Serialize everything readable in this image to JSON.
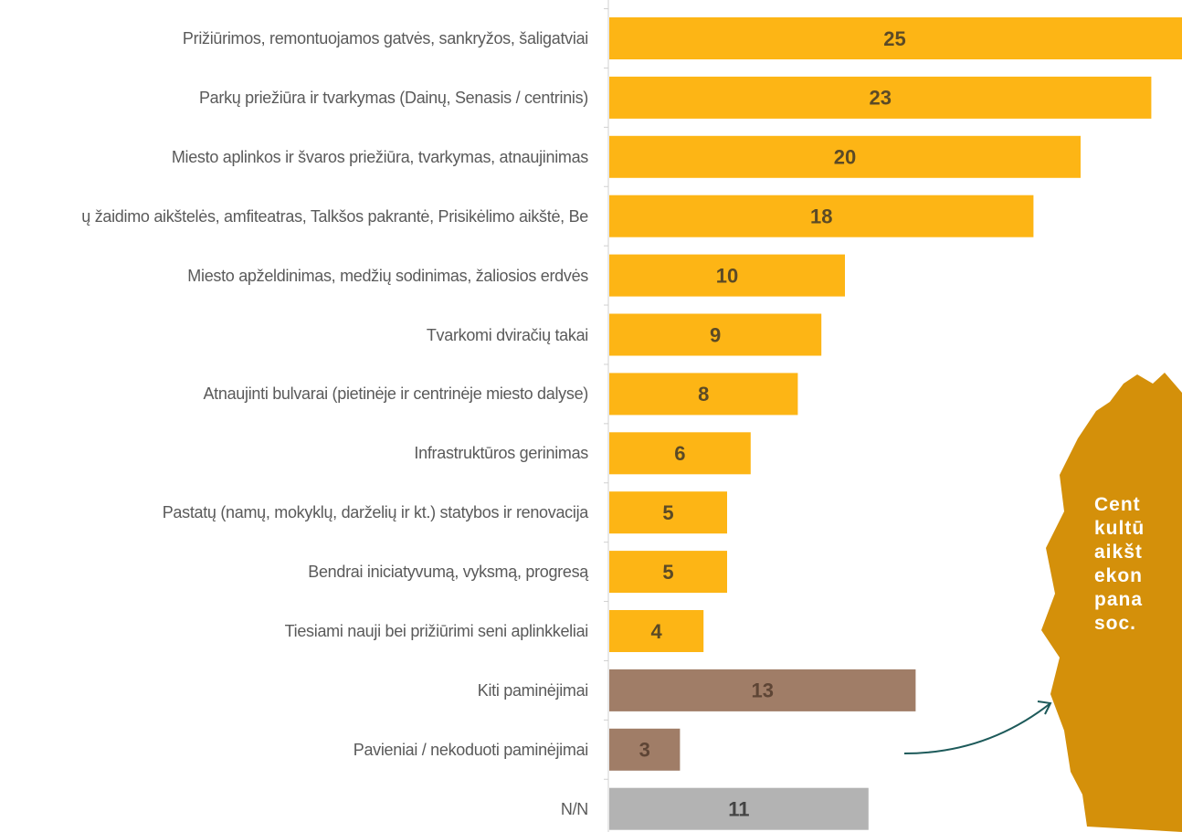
{
  "chart_data": {
    "type": "barh",
    "categories": [
      "Prižiūrimos, remontuojamos gatvės, sankryžos, šaligatviai",
      "Parkų priežiūra ir tvarkymas (Dainų, Senasis / centrinis)",
      "Miesto aplinkos ir švaros priežiūra, tvarkymas, atnaujinimas",
      "ų žaidimo aikštelės, amfiteatras, Talkšos pakrantė, Prisikėlimo aikštė, Be",
      "Miesto apželdinimas, medžių sodinimas, žaliosios erdvės",
      "Tvarkomi dviračių takai",
      "Atnaujinti bulvarai (pietinėje ir centrinėje miesto dalyse)",
      "Infrastruktūros gerinimas",
      "Pastatų (namų, mokyklų, darželių ir kt.) statybos ir renovacija",
      "Bendrai iniciatyvumą, vyksmą, progresą",
      "Tiesiami nauji bei prižiūrimi seni aplinkkeliai",
      "Kiti paminėjimai",
      "Pavieniai / nekoduoti paminėjimai",
      "N/N"
    ],
    "values": [
      25,
      23,
      20,
      18,
      10,
      9,
      8,
      6,
      5,
      5,
      4,
      13,
      3,
      11
    ],
    "colors": [
      "#fdb515",
      "#fdb515",
      "#fdb515",
      "#fdb515",
      "#fdb515",
      "#fdb515",
      "#fdb515",
      "#fdb515",
      "#fdb515",
      "#fdb515",
      "#fdb515",
      "#a07d67",
      "#a07d67",
      "#b3b3b3"
    ],
    "annotation": [
      "Cent",
      "kultū",
      "aikšt",
      "ekon",
      "pana",
      "soc."
    ]
  }
}
